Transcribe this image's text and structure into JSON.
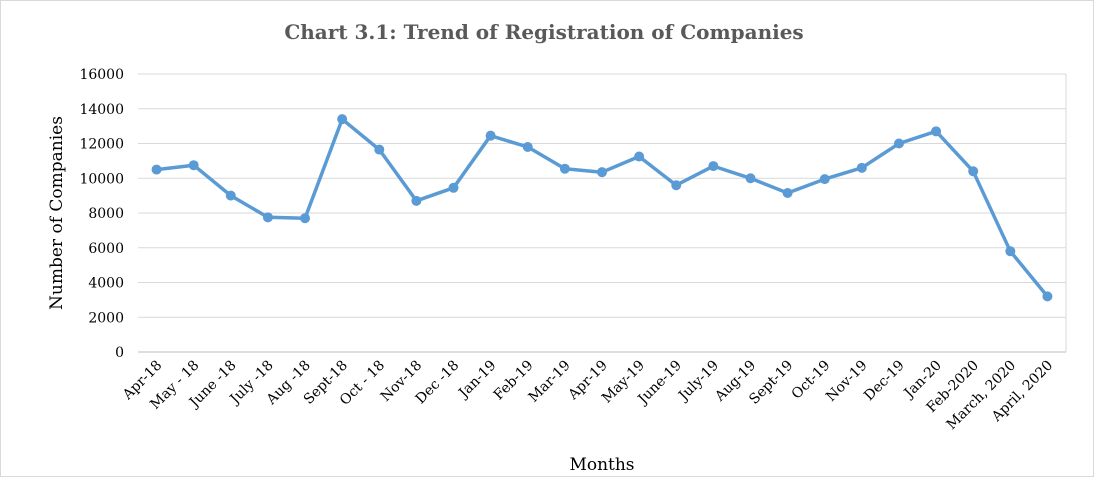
{
  "chart_data": {
    "type": "line",
    "title": "Chart 3.1: Trend of Registration of Companies",
    "xlabel": "Months",
    "ylabel": "Number of Companies",
    "ylim": [
      0,
      16000
    ],
    "yticks": [
      "0",
      "2000",
      "4000",
      "6000",
      "8000",
      "10000",
      "12000",
      "14000",
      "16000"
    ],
    "grid": true,
    "line_color": "#5b9bd5",
    "categories": [
      "Apr-18",
      "May - 18",
      "June -18",
      "July -18",
      "Aug -18",
      "Sept-18",
      "Oct - 18",
      "Nov-18",
      "Dec -18",
      "Jan-19",
      "Feb-19",
      "Mar-19",
      "Apr-19",
      "May-19",
      "June-19",
      "July-19",
      "Aug-19",
      "Sept-19",
      "Oct-19",
      "Nov-19",
      "Dec-19",
      "Jan-20",
      "Feb-2020",
      "March, 2020",
      "April, 2020"
    ],
    "values": [
      10500,
      10750,
      9000,
      7750,
      7700,
      13400,
      11650,
      8700,
      9450,
      12450,
      11800,
      10550,
      10350,
      11250,
      9600,
      10700,
      10000,
      9150,
      9950,
      10600,
      12000,
      12700,
      10400,
      5800,
      3200
    ]
  }
}
